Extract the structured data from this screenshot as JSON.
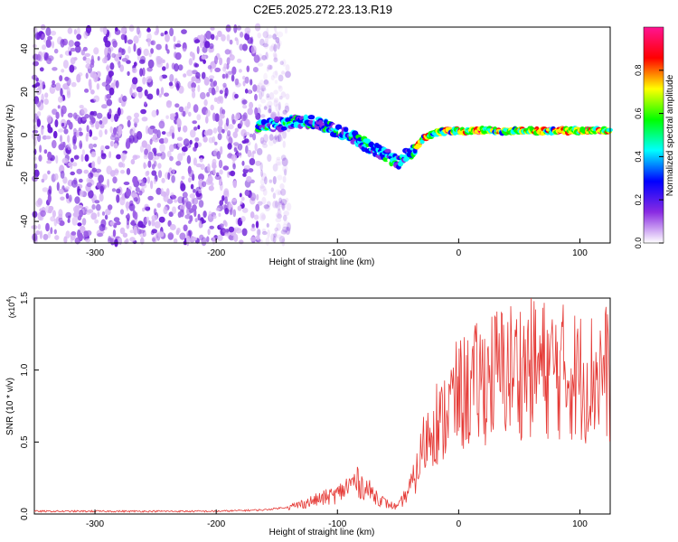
{
  "figure_title": "C2E5.2025.272.23.13.R19",
  "colors": {
    "snr_line": "#e53935",
    "axis": "#000000",
    "background": "#ffffff"
  },
  "chart_data": [
    {
      "type": "heatmap",
      "name": "spectrogram",
      "xlabel": "Height of straight line (km)",
      "ylabel": "Frequency (Hz)",
      "xlim": [
        -350,
        125
      ],
      "ylim": [
        -50,
        50
      ],
      "xticks": [
        -300,
        -200,
        -100,
        0,
        100
      ],
      "yticks": [
        -40,
        -20,
        0,
        20,
        40
      ],
      "noise_region_x": [
        -350,
        -165
      ],
      "signal_track": {
        "x": [
          -165,
          -150,
          -135,
          -120,
          -105,
          -90,
          -75,
          -60,
          -50,
          -45,
          -40,
          -35,
          -30,
          -20,
          -10,
          0,
          25,
          50,
          75,
          100,
          125
        ],
        "freq": [
          5,
          5,
          6,
          6,
          3,
          0,
          -5,
          -9,
          -13,
          -10,
          -8,
          -6,
          -2,
          1,
          2,
          2,
          2,
          2,
          2,
          2,
          2
        ]
      },
      "colorbar": {
        "label": "Normalized spectral amplitude",
        "range": [
          0,
          1
        ],
        "ticks": [
          "0.0",
          "0.2",
          "0.4",
          "0.6",
          "0.8"
        ],
        "tick_values": [
          0.0,
          0.2,
          0.4,
          0.6,
          0.8
        ],
        "colormap": [
          "#ffffff",
          "#8a2be2",
          "#0000ff",
          "#00ffff",
          "#00ff00",
          "#ffff00",
          "#ff0000",
          "#ff1493"
        ]
      }
    },
    {
      "type": "line",
      "name": "snr",
      "xlabel": "Height of straight line (km)",
      "ylabel": "SNR (10 * v/v)",
      "scale_label": "(x10",
      "scale_exp": "4",
      "scale_close": ")",
      "xlim": [
        -350,
        125
      ],
      "ylim": [
        0,
        1.5
      ],
      "xticks": [
        -300,
        -200,
        -100,
        0,
        100
      ],
      "yticks": [
        "0.0",
        "0.5",
        "1.0",
        "1.5"
      ],
      "ytick_values": [
        0.0,
        0.5,
        1.0,
        1.5
      ],
      "envelope": {
        "x": [
          -350,
          -200,
          -160,
          -140,
          -120,
          -100,
          -90,
          -85,
          -80,
          -70,
          -60,
          -50,
          -40,
          -35,
          -30,
          -25,
          -20,
          -15,
          -10,
          0,
          10,
          25,
          40,
          60,
          80,
          100,
          110,
          120,
          125
        ],
        "y": [
          0.02,
          0.02,
          0.03,
          0.05,
          0.1,
          0.15,
          0.22,
          0.25,
          0.22,
          0.15,
          0.08,
          0.05,
          0.2,
          0.3,
          0.5,
          0.6,
          0.75,
          0.65,
          0.8,
          0.9,
          0.95,
          1.05,
          1.1,
          1.12,
          1.1,
          1.05,
          1.05,
          1.1,
          1.05
        ]
      }
    }
  ]
}
